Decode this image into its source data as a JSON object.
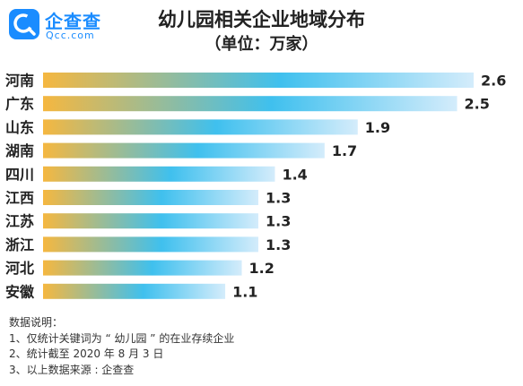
{
  "brand": {
    "name": "企查查",
    "domain": "Qcc.com",
    "color": "#1a8cff",
    "icon": "magnifier-c-icon"
  },
  "title": "幼儿园相关企业地域分布",
  "subtitle": "（单位：万家）",
  "chart_data": {
    "type": "bar",
    "orientation": "horizontal",
    "title": "幼儿园相关企业地域分布",
    "unit": "（单位：万家）",
    "categories": [
      "河南",
      "广东",
      "山东",
      "湖南",
      "四川",
      "江西",
      "江苏",
      "浙江",
      "河北",
      "安徽"
    ],
    "values": [
      2.6,
      2.5,
      1.9,
      1.7,
      1.4,
      1.3,
      1.3,
      1.3,
      1.2,
      1.1
    ],
    "value_labels": [
      "2.6",
      "2.5",
      "1.9",
      "1.7",
      "1.4",
      "1.3",
      "1.3",
      "1.3",
      "1.2",
      "1.1"
    ],
    "xlim": [
      0,
      2.6
    ],
    "grid": false,
    "legend": "none",
    "colors": {
      "bar_start": "#f5b740",
      "bar_mid": "#3fc0ee",
      "bar_end": "#d4ecfb"
    }
  },
  "notes": {
    "heading": "数据说明：",
    "items": [
      "1、仅统计关键词为 “ 幼儿园 ” 的在业存续企业",
      "2、统计截至 2020 年 8 月 3 日",
      "3、以上数据来源 : 企查查"
    ]
  }
}
